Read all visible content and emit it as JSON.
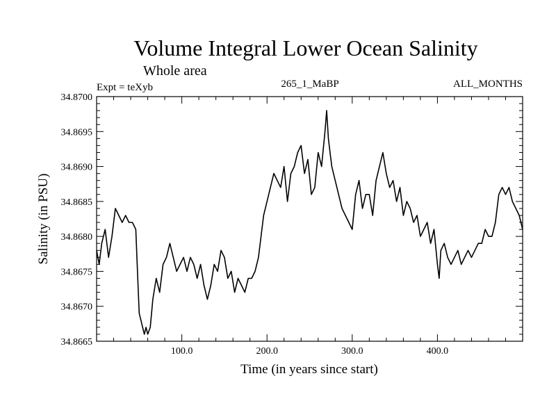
{
  "chart_data": {
    "type": "line",
    "title": "Volume Integral Lower Ocean Salinity",
    "subtitle": "Whole area",
    "experiment": "Expt = teXyb",
    "run_label": "265_1_MaBP",
    "period_label": "ALL_MONTHS",
    "xlabel": "Time (in years since start)",
    "ylabel": "Salinity (in PSU)",
    "xlim": [
      0,
      500
    ],
    "ylim": [
      34.8665,
      34.87
    ],
    "xticks": [
      "100.0",
      "200.0",
      "300.0",
      "400.0"
    ],
    "yticks": [
      "34.8665",
      "34.8670",
      "34.8675",
      "34.8680",
      "34.8685",
      "34.8690",
      "34.8695",
      "34.8700"
    ],
    "grid": false,
    "line_color": "#000000",
    "series": [
      {
        "x": [
          0,
          3,
          6,
          10,
          14,
          18,
          22,
          26,
          30,
          34,
          38,
          42,
          46,
          48,
          50,
          52,
          54,
          56,
          58,
          60,
          63,
          66,
          70,
          74,
          78,
          82,
          86,
          90,
          94,
          98,
          102,
          106,
          110,
          114,
          118,
          122,
          126,
          130,
          134,
          138,
          142,
          146,
          150,
          154,
          158,
          162,
          166,
          170,
          174,
          178,
          182,
          186,
          190,
          193,
          196,
          200,
          204,
          208,
          212,
          216,
          220,
          224,
          228,
          232,
          236,
          240,
          244,
          248,
          252,
          256,
          260,
          264,
          268,
          270,
          272,
          274,
          276,
          280,
          284,
          288,
          292,
          296,
          300,
          304,
          308,
          312,
          316,
          320,
          324,
          328,
          332,
          336,
          340,
          344,
          348,
          352,
          356,
          360,
          364,
          368,
          372,
          376,
          380,
          384,
          388,
          392,
          396,
          400,
          402,
          404,
          408,
          412,
          416,
          420,
          424,
          428,
          432,
          436,
          440,
          444,
          448,
          452,
          456,
          460,
          464,
          468,
          472,
          476,
          480,
          484,
          488,
          492,
          496,
          500
        ],
        "y": [
          34.8678,
          34.8676,
          34.8679,
          34.8681,
          34.8677,
          34.868,
          34.8684,
          34.8683,
          34.8682,
          34.8683,
          34.8682,
          34.8682,
          34.8681,
          34.8675,
          34.8669,
          34.8668,
          34.8667,
          34.8666,
          34.8667,
          34.8666,
          34.8667,
          34.8671,
          34.8674,
          34.8672,
          34.8676,
          34.8677,
          34.8679,
          34.8677,
          34.8675,
          34.8676,
          34.8677,
          34.8675,
          34.8677,
          34.8676,
          34.8674,
          34.8676,
          34.8673,
          34.8671,
          34.8673,
          34.8676,
          34.8675,
          34.8678,
          34.8677,
          34.8674,
          34.8675,
          34.8672,
          34.8674,
          34.8673,
          34.8672,
          34.8674,
          34.8674,
          34.8675,
          34.8677,
          34.868,
          34.8683,
          34.8685,
          34.8687,
          34.8689,
          34.8688,
          34.8687,
          34.869,
          34.8685,
          34.8689,
          34.869,
          34.8692,
          34.8693,
          34.8689,
          34.8691,
          34.8686,
          34.8687,
          34.8692,
          34.869,
          34.8695,
          34.8698,
          34.8694,
          34.8692,
          34.869,
          34.8688,
          34.8686,
          34.8684,
          34.8683,
          34.8682,
          34.8681,
          34.8686,
          34.8688,
          34.8684,
          34.8686,
          34.8686,
          34.8683,
          34.8688,
          34.869,
          34.8692,
          34.8689,
          34.8687,
          34.8688,
          34.8685,
          34.8687,
          34.8683,
          34.8685,
          34.8684,
          34.8682,
          34.8683,
          34.868,
          34.8681,
          34.8682,
          34.8679,
          34.8681,
          34.8676,
          34.8674,
          34.8678,
          34.8679,
          34.8677,
          34.8676,
          34.8677,
          34.8678,
          34.8676,
          34.8677,
          34.8678,
          34.8677,
          34.8678,
          34.8679,
          34.8679,
          34.8681,
          34.868,
          34.868,
          34.8682,
          34.8686,
          34.8687,
          34.8686,
          34.8687,
          34.8685,
          34.8684,
          34.8683,
          34.8681
        ]
      }
    ]
  }
}
